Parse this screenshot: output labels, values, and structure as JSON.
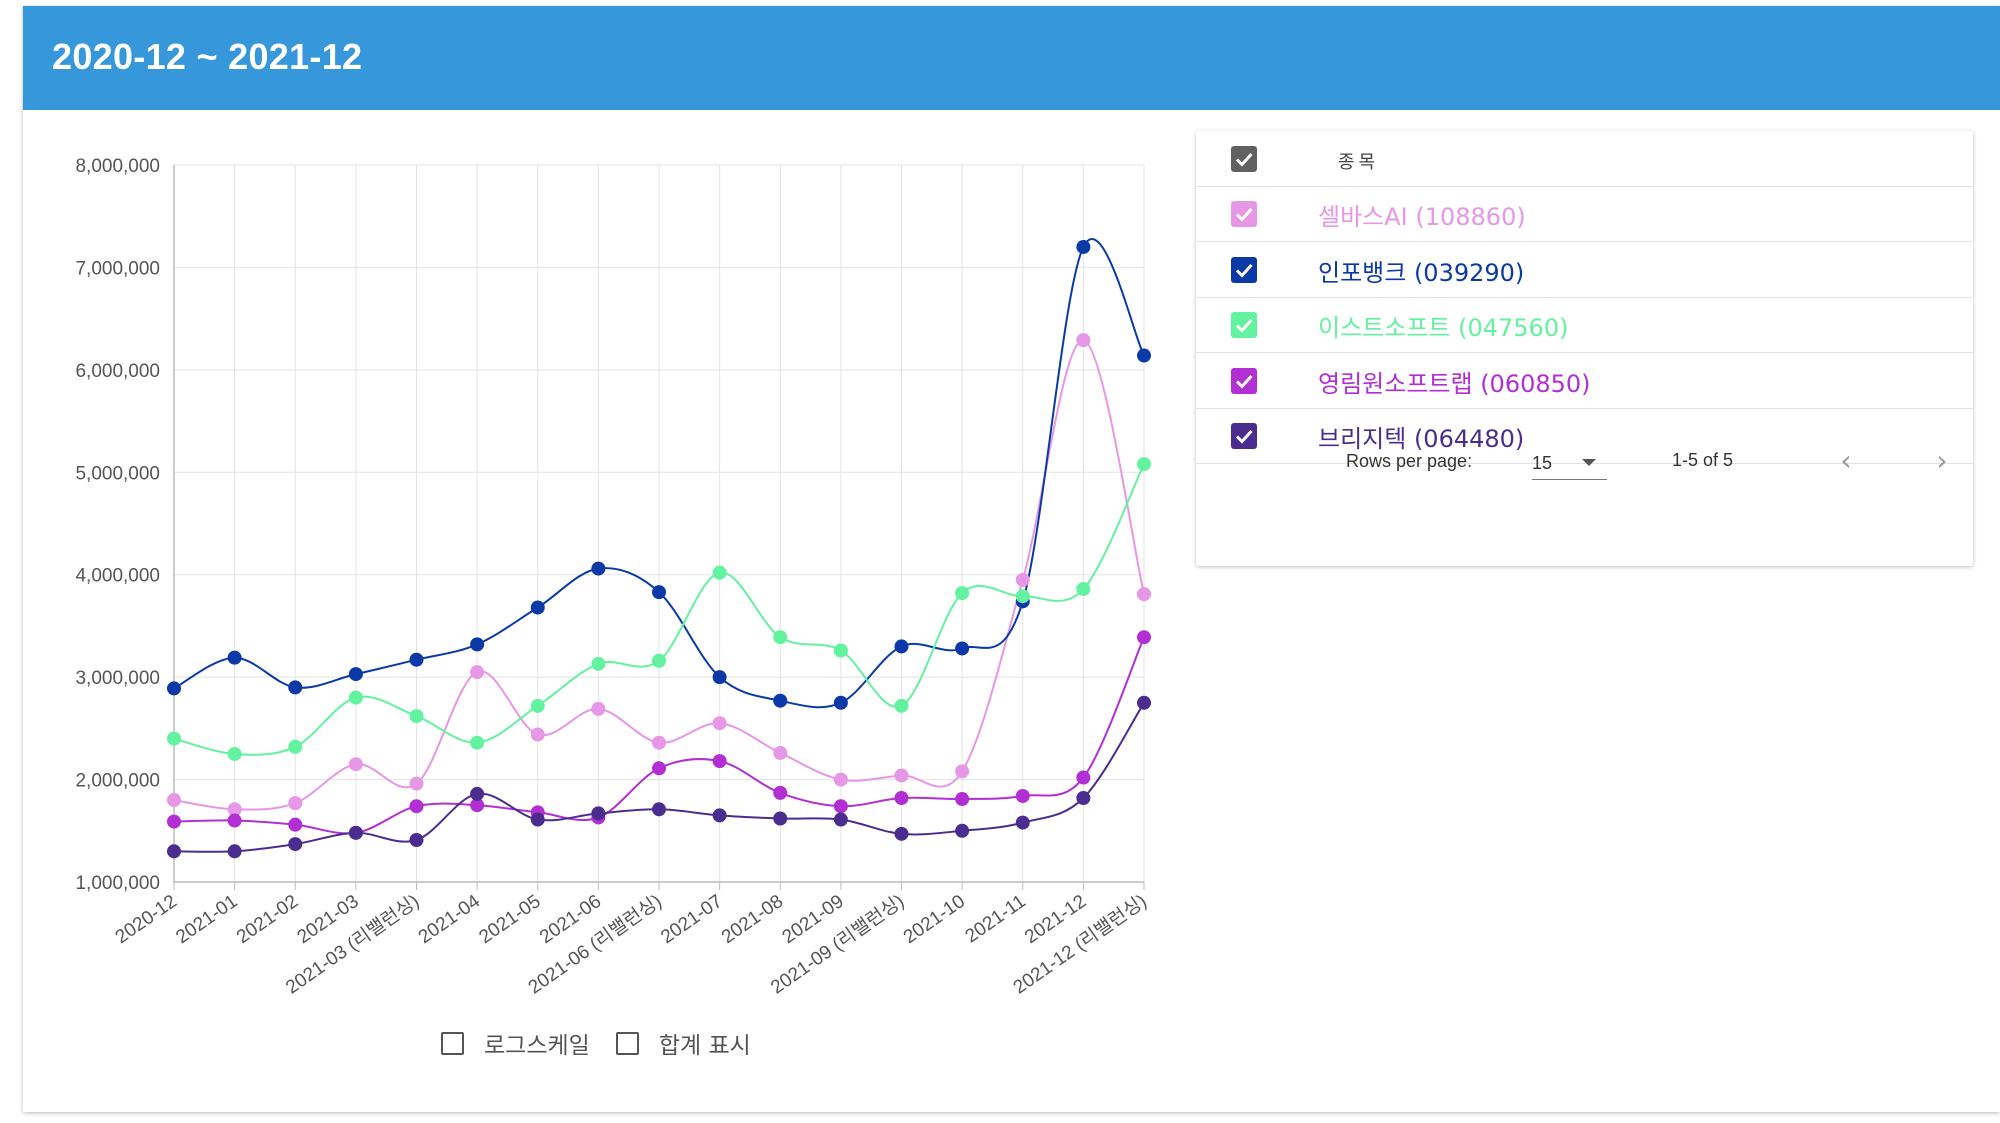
{
  "header": {
    "title": "2020-12 ~ 2021-12"
  },
  "chart_data": {
    "type": "line",
    "categories": [
      "2020-12",
      "2021-01",
      "2021-02",
      "2021-03",
      "2021-03 (리밸런싱)",
      "2021-04",
      "2021-05",
      "2021-06",
      "2021-06 (리밸런싱)",
      "2021-07",
      "2021-08",
      "2021-09",
      "2021-09 (리밸런싱)",
      "2021-10",
      "2021-11",
      "2021-12",
      "2021-12 (리밸런싱)"
    ],
    "ylim": [
      1000000,
      8000000
    ],
    "yticks": [
      1000000,
      2000000,
      3000000,
      4000000,
      5000000,
      6000000,
      7000000,
      8000000
    ],
    "ytick_labels": [
      "1,000,000",
      "2,000,000",
      "3,000,000",
      "4,000,000",
      "5,000,000",
      "6,000,000",
      "7,000,000",
      "8,000,000"
    ],
    "grid": true,
    "smooth": true,
    "series": [
      {
        "name": "셀바스AI (108860)",
        "color": "#e697e6",
        "values": [
          1800000,
          1710000,
          1770000,
          2150000,
          1960000,
          3050000,
          2440000,
          2690000,
          2360000,
          2550000,
          2260000,
          2000000,
          2040000,
          2080000,
          3950000,
          6290000,
          3810000
        ]
      },
      {
        "name": "인포뱅크 (039290)",
        "color": "#0b3aa8",
        "values": [
          2890000,
          3190000,
          2900000,
          3030000,
          3170000,
          3320000,
          3680000,
          4060000,
          3830000,
          3000000,
          2770000,
          2750000,
          3300000,
          3280000,
          3740000,
          7200000,
          6140000
        ]
      },
      {
        "name": "이스트소프트 (047560)",
        "color": "#63f29f",
        "values": [
          2400000,
          2250000,
          2320000,
          2800000,
          2620000,
          2360000,
          2720000,
          3130000,
          3160000,
          4020000,
          3390000,
          3260000,
          2720000,
          3820000,
          3790000,
          3860000,
          5080000
        ]
      },
      {
        "name": "영림원소프트랩 (060850)",
        "color": "#b22fd4",
        "values": [
          1590000,
          1600000,
          1560000,
          1480000,
          1740000,
          1750000,
          1680000,
          1630000,
          2110000,
          2180000,
          1870000,
          1740000,
          1820000,
          1810000,
          1840000,
          2020000,
          3390000
        ]
      },
      {
        "name": "브리지텍 (064480)",
        "color": "#4a2d8f",
        "values": [
          1300000,
          1300000,
          1370000,
          1480000,
          1410000,
          1860000,
          1610000,
          1670000,
          1710000,
          1650000,
          1620000,
          1610000,
          1470000,
          1500000,
          1580000,
          1820000,
          2750000
        ]
      }
    ]
  },
  "options": {
    "log_scale": "로그스케일",
    "show_total": "합계 표시"
  },
  "table": {
    "header_label": "종목",
    "rows": [
      {
        "label": "셀바스AI (108860)",
        "color": "#e697e6"
      },
      {
        "label": "인포뱅크 (039290)",
        "color": "#0b3aa8"
      },
      {
        "label": "이스트소프트 (047560)",
        "color": "#63f29f"
      },
      {
        "label": "영림원소프트랩 (060850)",
        "color": "#b22fd4"
      },
      {
        "label": "브리지텍 (064480)",
        "color": "#4a2d8f"
      }
    ],
    "footer": {
      "rows_per_page_label": "Rows per page:",
      "rows_per_page_value": "15",
      "range": "1-5 of 5"
    }
  }
}
